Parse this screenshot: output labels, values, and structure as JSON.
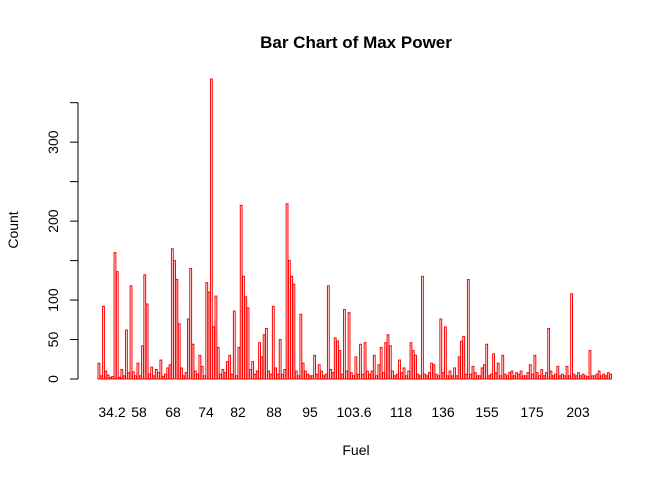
{
  "chart_data": {
    "type": "bar",
    "title": "Bar Chart of Max Power",
    "xlabel": "Fuel",
    "ylabel": "Count",
    "ylim": [
      0,
      380
    ],
    "yticks": [
      0,
      50,
      100,
      200,
      300
    ],
    "x_tick_labels": [
      "34.2",
      "58",
      "68",
      "74",
      "82",
      "88",
      "95",
      "103.6",
      "118",
      "136",
      "155",
      "175",
      "203"
    ],
    "bar_border_color": "#ff0000",
    "bar_fill_color": "#ffffff",
    "grid": false,
    "legend": "none",
    "highlighted_bars": [
      {
        "category": "74",
        "value": 380
      },
      {
        "category": "82",
        "value": 220
      },
      {
        "category": "88",
        "value": 222
      },
      {
        "category": "68",
        "value": 166
      },
      {
        "category": "58",
        "value": 162
      }
    ]
  }
}
